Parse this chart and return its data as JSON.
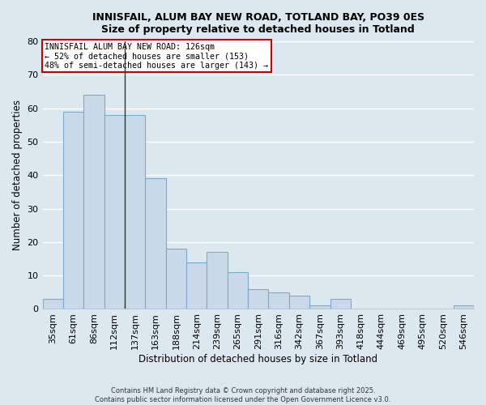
{
  "title_line1": "INNISFAIL, ALUM BAY NEW ROAD, TOTLAND BAY, PO39 0ES",
  "title_line2": "Size of property relative to detached houses in Totland",
  "xlabel": "Distribution of detached houses by size in Totland",
  "ylabel": "Number of detached properties",
  "bar_color": "#c9d9ea",
  "bar_edge_color": "#7aabcc",
  "categories": [
    "35sqm",
    "61sqm",
    "86sqm",
    "112sqm",
    "137sqm",
    "163sqm",
    "188sqm",
    "214sqm",
    "239sqm",
    "265sqm",
    "291sqm",
    "316sqm",
    "342sqm",
    "367sqm",
    "393sqm",
    "418sqm",
    "444sqm",
    "469sqm",
    "495sqm",
    "520sqm",
    "546sqm"
  ],
  "values": [
    3,
    59,
    64,
    58,
    58,
    39,
    18,
    14,
    17,
    11,
    6,
    5,
    4,
    1,
    3,
    0,
    0,
    0,
    0,
    0,
    1
  ],
  "ylim": [
    0,
    80
  ],
  "yticks": [
    0,
    10,
    20,
    30,
    40,
    50,
    60,
    70,
    80
  ],
  "vline_x_index": 3.5,
  "annotation_text": "INNISFAIL ALUM BAY NEW ROAD: 126sqm\n← 52% of detached houses are smaller (153)\n48% of semi-detached houses are larger (143) →",
  "annotation_box_color": "#ffffff",
  "annotation_box_edge": "#cc0000",
  "footer_line1": "Contains HM Land Registry data © Crown copyright and database right 2025.",
  "footer_line2": "Contains public sector information licensed under the Open Government Licence v3.0.",
  "bg_color": "#dce8f0",
  "grid_color": "#ffffff",
  "plot_bg": "#dce8f0"
}
